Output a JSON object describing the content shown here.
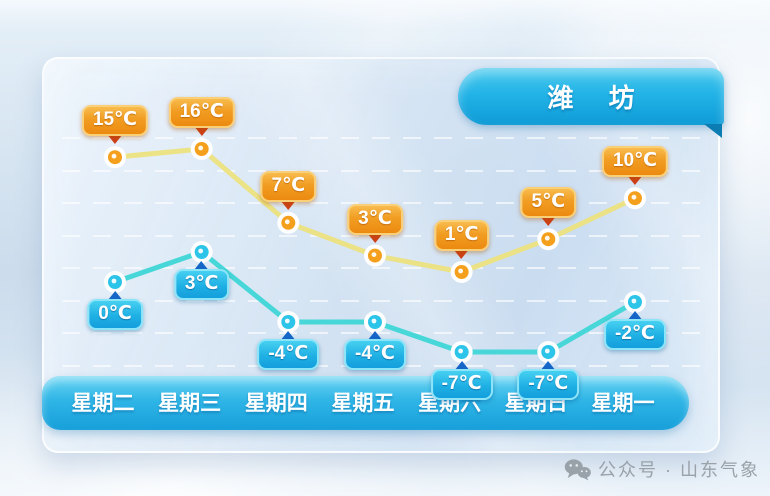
{
  "header": {
    "city_label": "潍 坊"
  },
  "chart_data": {
    "type": "line",
    "categories": [
      "星期二",
      "星期三",
      "星期四",
      "星期五",
      "星期六",
      "星期日",
      "星期一"
    ],
    "unit": "℃",
    "series": [
      {
        "name": "high",
        "values": [
          15,
          16,
          7,
          3,
          1,
          5,
          10
        ],
        "labels": [
          "15℃",
          "16℃",
          "7℃",
          "3℃",
          "1℃",
          "5℃",
          "10℃"
        ]
      },
      {
        "name": "low",
        "values": [
          0,
          3,
          -4,
          -4,
          -7,
          -7,
          -2
        ],
        "labels": [
          "0℃",
          "3℃",
          "-4℃",
          "-4℃",
          "-7℃",
          "-7℃",
          "-2℃"
        ]
      }
    ],
    "y_range_hint": [
      -7,
      16
    ],
    "grid": true,
    "legend_position": "none"
  },
  "colors": {
    "high_label_bg": "#ef8f13",
    "high_pointer": "#ce4018",
    "high_line": "#ece180",
    "high_point": "#f5a01c",
    "low_label_bg": "#17a5de",
    "low_pointer": "#1566c8",
    "low_line": "#3fd6d6",
    "low_point": "#2cc4e8",
    "ribbon": "#18a8e2",
    "day_bar": "#1fa6de"
  },
  "watermark": {
    "icon": "wechat-icon",
    "text": "公众号 · 山东气象"
  }
}
